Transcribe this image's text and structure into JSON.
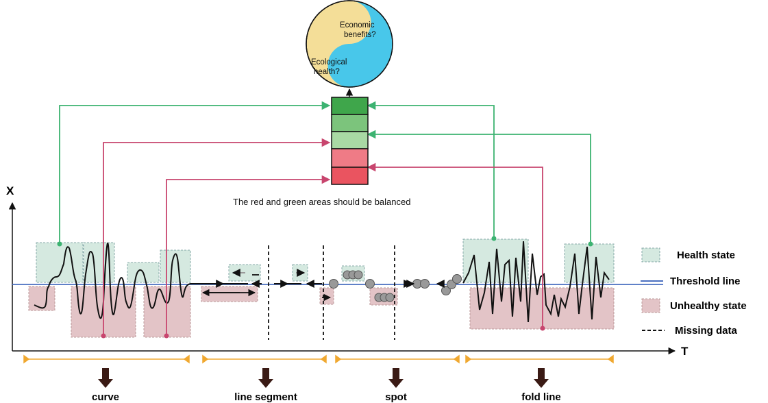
{
  "axes": {
    "y_label": "X",
    "x_label": "T"
  },
  "yin_yang": {
    "top_text": [
      "Economic",
      "benefits?"
    ],
    "bottom_text": [
      "Ecological",
      "health?"
    ]
  },
  "stack": {
    "colors": [
      "#3fa64b",
      "#7cc47c",
      "#a9d9a4",
      "#ef7b86",
      "#ea5460"
    ]
  },
  "balance_note": "The red and green areas should be balanced",
  "legend": {
    "health": "Health state",
    "threshold": "Threshold line",
    "unhealthy": "Unhealthy state",
    "missing": "Missing data"
  },
  "categories": {
    "curve": "curve",
    "segment": "line segment",
    "spot": "spot",
    "fold": "fold line"
  },
  "colors": {
    "health_fill": "#d5e9e0",
    "unhealthy_fill": "#e3c4c7",
    "threshold": "#4a6fc0",
    "green_link": "#3cb371",
    "red_link": "#c8456e",
    "yin_blue": "#48c7ea",
    "yang_yellow": "#f4de98",
    "bracket": "#f0a830"
  }
}
